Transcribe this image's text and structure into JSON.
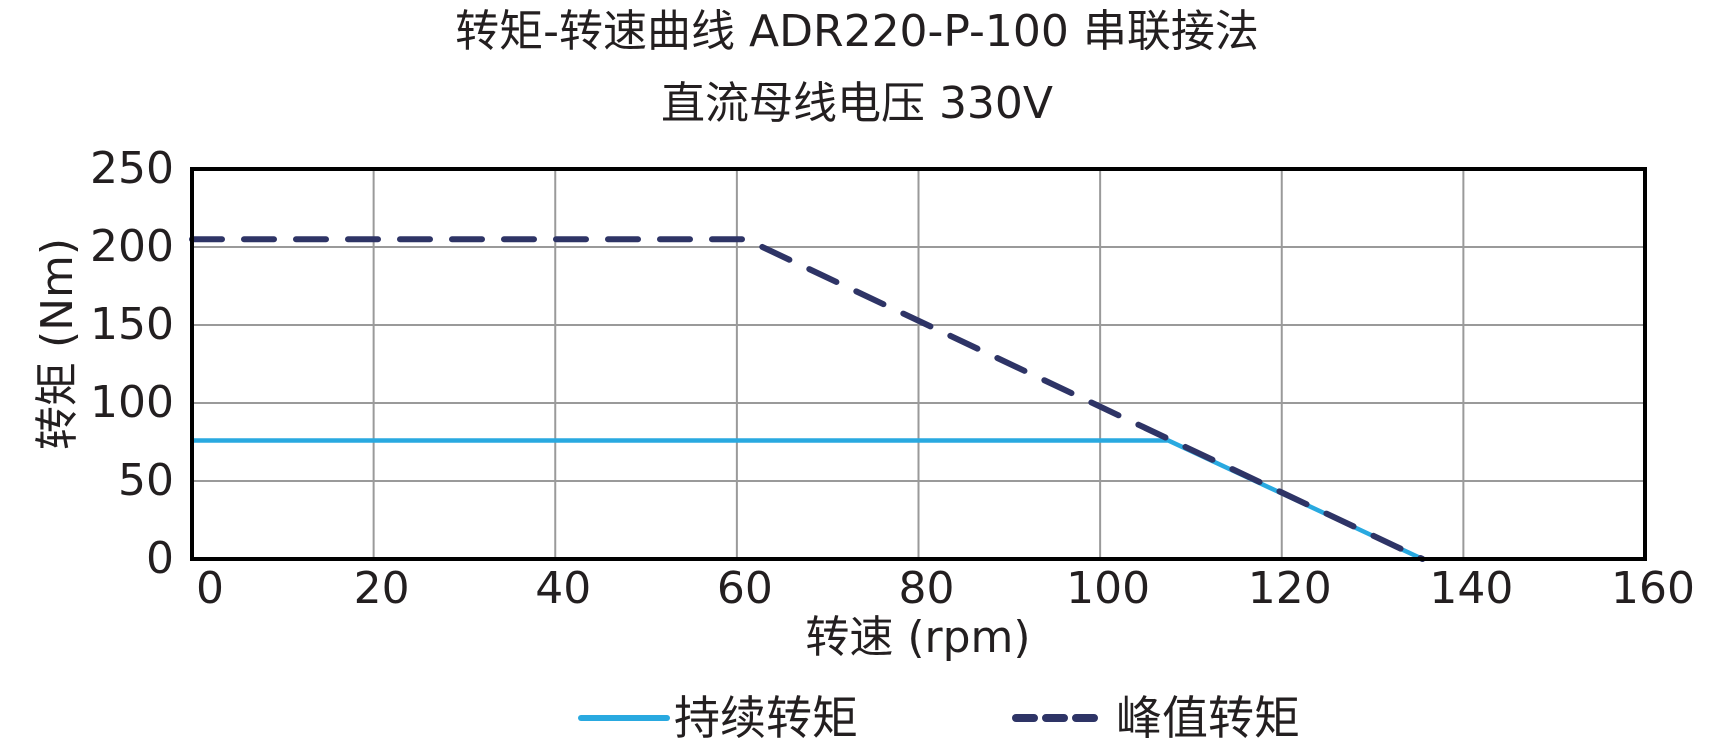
{
  "chart_data": {
    "type": "line",
    "title": "转矩-转速曲线 ADR220-P-100 串联接法",
    "subtitle": "直流母线电压 330V",
    "xlabel": "转速 (rpm)",
    "ylabel": "转矩 (Nm)",
    "xlim": [
      0,
      160
    ],
    "ylim": [
      0,
      250
    ],
    "xticks": [
      0,
      20,
      40,
      60,
      80,
      100,
      120,
      140,
      160
    ],
    "yticks": [
      0,
      50,
      100,
      150,
      200,
      250
    ],
    "grid": true,
    "legend_position": "bottom",
    "series": [
      {
        "name": "持续转矩",
        "style": "solid",
        "color": "#29A9E0",
        "x": [
          0,
          107.5,
          135.5
        ],
        "y": [
          76,
          76,
          0
        ]
      },
      {
        "name": "峰值转矩",
        "style": "dashed",
        "color": "#2E3466",
        "x": [
          0,
          61,
          135.5
        ],
        "y": [
          205,
          205,
          0
        ]
      }
    ]
  },
  "title": {
    "line1": "转矩-转速曲线 ADR220-P-100 串联接法",
    "line2": "直流母线电压 330V"
  },
  "axes": {
    "x_label": "转速 (rpm)",
    "y_label": "转矩 (Nm)",
    "x_ticks": [
      "0",
      "20",
      "40",
      "60",
      "80",
      "100",
      "120",
      "140",
      "160"
    ],
    "y_ticks": [
      "0",
      "50",
      "100",
      "150",
      "200",
      "250"
    ]
  },
  "legend": {
    "continuous": "持续转矩",
    "peak": "峰值转矩"
  },
  "colors": {
    "continuous": "#29A9E0",
    "peak": "#2E3466",
    "grid": "#9a9a9a",
    "frame": "#000000",
    "text": "#231f20"
  }
}
